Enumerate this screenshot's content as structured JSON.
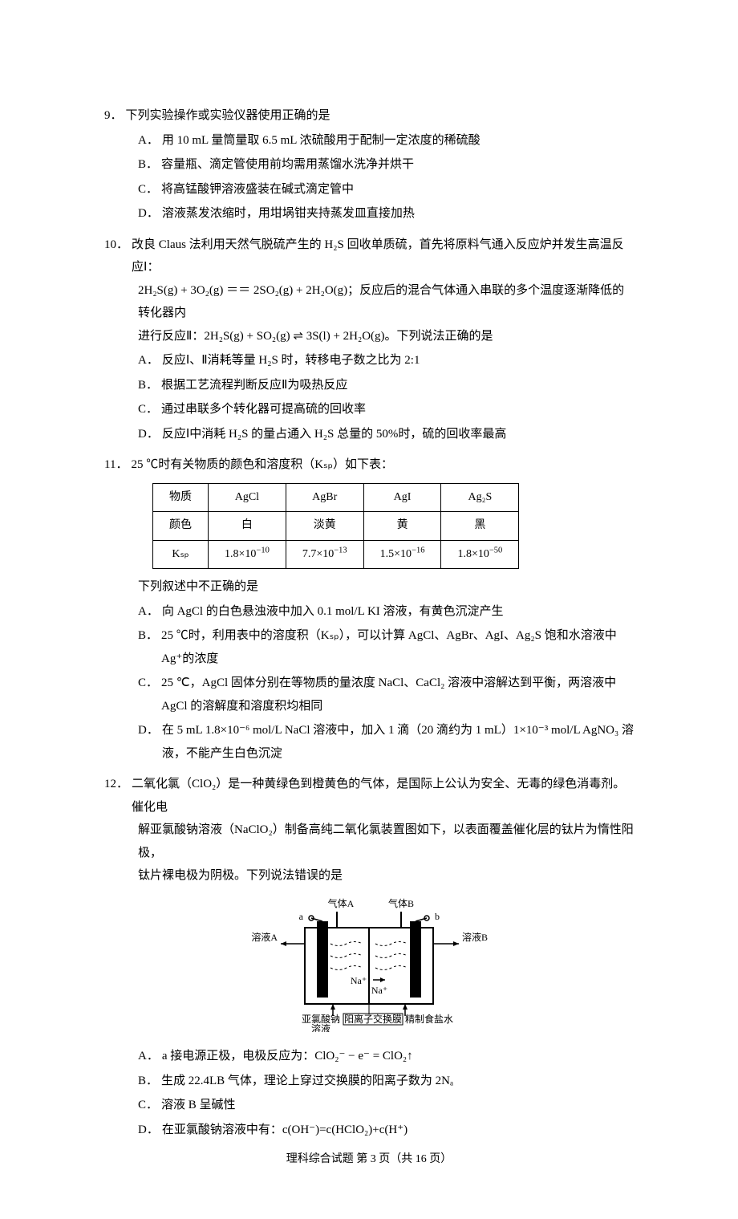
{
  "q9": {
    "num": "9．",
    "stem": "下列实验操作或实验仪器使用正确的是",
    "opts": {
      "A": "用 10 mL 量筒量取 6.5 mL 浓硫酸用于配制一定浓度的稀硫酸",
      "B": "容量瓶、滴定管使用前均需用蒸馏水洗净并烘干",
      "C": "将高锰酸钾溶液盛装在碱式滴定管中",
      "D": "溶液蒸发浓缩时，用坩埚钳夹持蒸发皿直接加热"
    }
  },
  "q10": {
    "num": "10．",
    "stem_lead": "改良 Claus 法利用天然气脱硫产生的 H₂S 回收单质硫，首先将原料气通入反应炉并发生高温反应Ⅰ：",
    "stem_line2": "2H₂S(g) + 3O₂(g) ＝＝ 2SO₂(g) + 2H₂O(g)；反应后的混合气体通入串联的多个温度逐渐降低的转化器内",
    "stem_line3": "进行反应Ⅱ：2H₂S(g) + SO₂(g) ⇌ 3S(l) + 2H₂O(g)。下列说法正确的是",
    "opts": {
      "A": "反应Ⅰ、Ⅱ消耗等量 H₂S 时，转移电子数之比为 2:1",
      "B": "根据工艺流程判断反应Ⅱ为吸热反应",
      "C": "通过串联多个转化器可提高硫的回收率",
      "D": "反应Ⅰ中消耗 H₂S 的量占通入 H₂S 总量的 50%时，硫的回收率最高"
    }
  },
  "q11": {
    "num": "11．",
    "stem_lead": "25 ℃时有关物质的颜色和溶度积（Kₛₚ）如下表：",
    "table": {
      "headers": [
        "物质",
        "AgCl",
        "AgBr",
        "AgI",
        "Ag₂S"
      ],
      "row_color_label": "颜色",
      "row_color": [
        "白",
        "淡黄",
        "黄",
        "黑"
      ],
      "row_ksp_label": "Kₛₚ",
      "row_ksp_html": [
        "1.8×10<sup>−10</sup>",
        "7.7×10<sup>−13</sup>",
        "1.5×10<sup>−16</sup>",
        "1.8×10<sup>−50</sup>"
      ]
    },
    "stem_tail": "下列叙述中不正确的是",
    "opts": {
      "A": "向 AgCl 的白色悬浊液中加入 0.1 mol/L KI 溶液，有黄色沉淀产生",
      "B": "25 ℃时，利用表中的溶度积（Kₛₚ），可以计算 AgCl、AgBr、AgI、Ag₂S 饱和水溶液中 Ag⁺的浓度",
      "C": "25 ℃，AgCl 固体分别在等物质的量浓度 NaCl、CaCl₂ 溶液中溶解达到平衡，两溶液中 AgCl 的溶解度和溶度积均相同",
      "D": "在 5 mL 1.8×10⁻⁶ mol/L NaCl 溶液中，加入 1 滴（20 滴约为 1 mL）1×10⁻³ mol/L AgNO₃ 溶液，不能产生白色沉淀"
    }
  },
  "q12": {
    "num": "12．",
    "stem_line1": "二氧化氯（ClO₂）是一种黄绿色到橙黄色的气体，是国际上公认为安全、无毒的绿色消毒剂。催化电",
    "stem_line2": "解亚氯酸钠溶液（NaClO₂）制备高纯二氧化氯装置图如下，以表面覆盖催化层的钛片为惰性阳极，",
    "stem_line3": "钛片裸电极为阴极。下列说法错误的是",
    "figure": {
      "top_left": "气体A",
      "top_right": "气体B",
      "port_a": "a",
      "port_b": "b",
      "liquid_a": "溶液A",
      "liquid_b": "溶液B",
      "na_left": "Na⁺",
      "na_right": "Na⁺",
      "bottom_left_1": "亚氯酸钠",
      "bottom_left_2": "溶液",
      "membrane": "阳离子交换膜",
      "bottom_right": "精制食盐水"
    },
    "opts": {
      "A": "a 接电源正极，电极反应为：ClO₂⁻ − e⁻ = ClO₂↑",
      "B": "生成 22.4LB 气体，理论上穿过交换膜的阳离子数为 2Nₐ",
      "C": "溶液 B 呈碱性",
      "D": "在亚氯酸钠溶液中有：c(OH⁻)=c(HClO₂)+c(H⁺)"
    }
  },
  "footer": "理科综合试题 第 3 页（共 16 页）"
}
